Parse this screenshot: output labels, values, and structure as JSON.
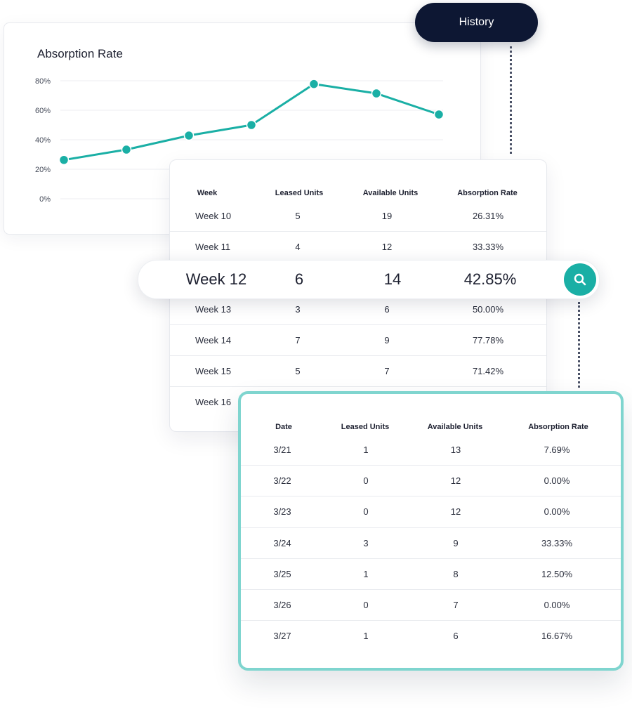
{
  "history": {
    "label": "History"
  },
  "chart": {
    "title": "Absorption Rate"
  },
  "chart_data": {
    "type": "line",
    "title": "Absorption Rate",
    "xlabel": "",
    "ylabel": "",
    "ylim": [
      0,
      80
    ],
    "yticks": [
      "80%",
      "60%",
      "40%",
      "20%",
      "0%"
    ],
    "grid": true,
    "line_color": "#1aafa5",
    "series": [
      {
        "values": [
          26.31,
          33.33,
          42.85,
          50.0,
          77.78,
          71.42,
          57.14
        ]
      }
    ]
  },
  "weekly_table": {
    "columns": [
      "Week",
      "Leased Units",
      "Available Units",
      "Absorption Rate"
    ],
    "rows": [
      [
        "Week 10",
        "5",
        "19",
        "26.31%"
      ],
      [
        "Week 11",
        "4",
        "12",
        "33.33%"
      ],
      [
        "Week 13",
        "3",
        "6",
        "50.00%"
      ],
      [
        "Week 14",
        "7",
        "9",
        "77.78%"
      ],
      [
        "Week 15",
        "5",
        "7",
        "71.42%"
      ],
      [
        "Week 16",
        "",
        "",
        ""
      ]
    ]
  },
  "search": {
    "week": "Week 12",
    "leased": "6",
    "available": "14",
    "rate": "42.85%",
    "icon": "search-icon"
  },
  "daily_table": {
    "columns": [
      "Date",
      "Leased Units",
      "Available Units",
      "Absorption Rate"
    ],
    "rows": [
      [
        "3/21",
        "1",
        "13",
        "7.69%"
      ],
      [
        "3/22",
        "0",
        "12",
        "0.00%"
      ],
      [
        "3/23",
        "0",
        "12",
        "0.00%"
      ],
      [
        "3/24",
        "3",
        "9",
        "33.33%"
      ],
      [
        "3/25",
        "1",
        "8",
        "12.50%"
      ],
      [
        "3/26",
        "0",
        "7",
        "0.00%"
      ],
      [
        "3/27",
        "1",
        "6",
        "16.67%"
      ]
    ]
  },
  "colors": {
    "accent": "#1aafa5",
    "navy": "#0d1733",
    "highlight_border": "#7fd5cf"
  }
}
